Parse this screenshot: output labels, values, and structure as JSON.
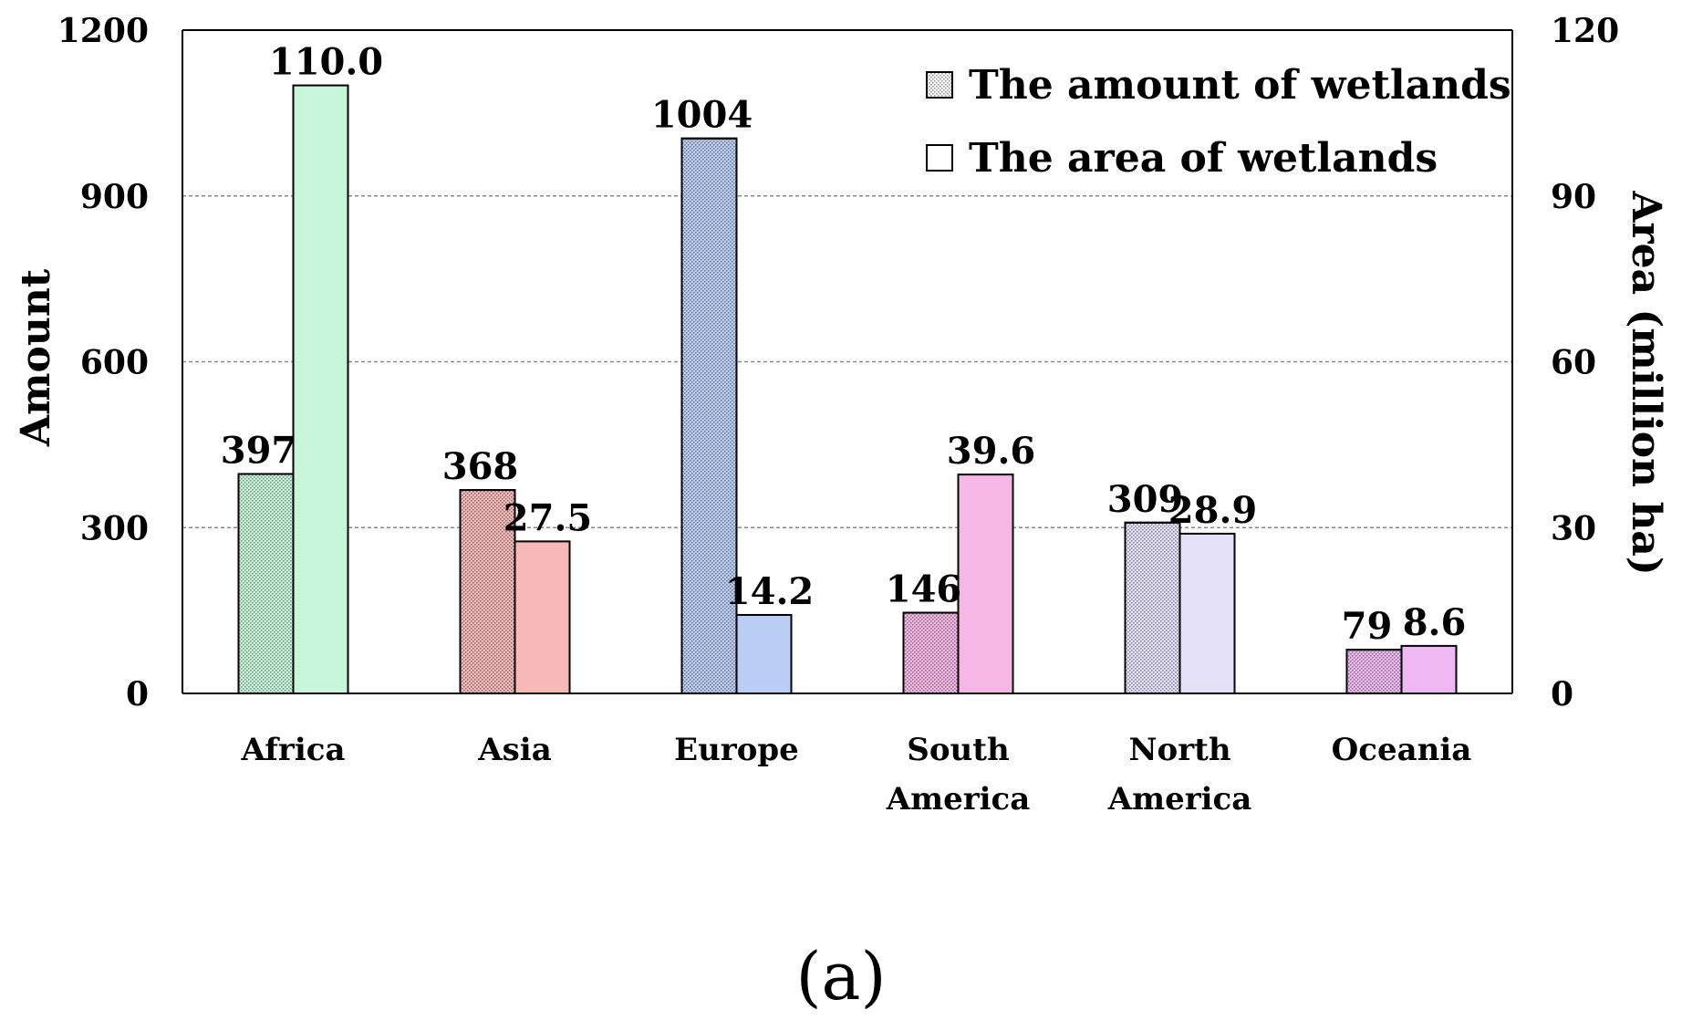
{
  "chart_data": {
    "type": "bar",
    "categories": [
      [
        "Africa"
      ],
      [
        "Asia"
      ],
      [
        "Europe"
      ],
      [
        "South",
        "America"
      ],
      [
        "North",
        "America"
      ],
      [
        "Oceania"
      ]
    ],
    "series": [
      {
        "name": "The amount of wetlands",
        "axis": "left",
        "pattern": "dotted",
        "values": [
          397,
          368,
          1004,
          146,
          309,
          79
        ],
        "labels": [
          "397",
          "368",
          "1004",
          "146",
          "309",
          "79"
        ]
      },
      {
        "name": "The area of wetlands",
        "axis": "right",
        "pattern": "solid",
        "values": [
          110.0,
          27.5,
          14.2,
          39.6,
          28.9,
          8.6
        ],
        "labels": [
          "110.0",
          "27.5",
          "14.2",
          "39.6",
          "28.9",
          "8.6"
        ]
      }
    ],
    "category_colors": [
      "#c6f5da",
      "#f7b8b8",
      "#b9cdf5",
      "#f6b6e6",
      "#e4e0f8",
      "#f0b8f2"
    ],
    "ylabel_left": "Amount",
    "ylabel_right": "Area  (million ha)",
    "ylim_left": [
      0,
      1200
    ],
    "ylim_right": [
      0,
      120
    ],
    "yticks_left": [
      "0",
      "300",
      "600",
      "900",
      "1200"
    ],
    "yticks_right": [
      "0",
      "30",
      "60",
      "90",
      "120"
    ],
    "grid": true,
    "legend_position": "top-right",
    "caption": "(a)"
  }
}
